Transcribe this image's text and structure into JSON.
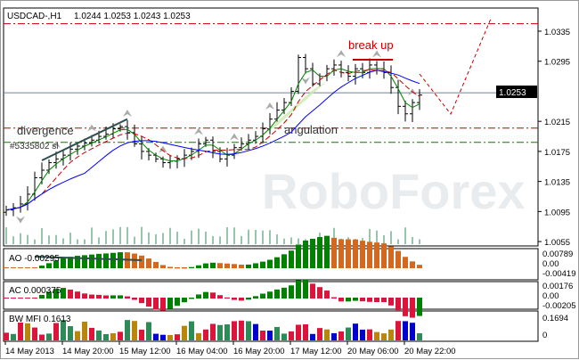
{
  "header": {
    "symbol": "USDCAD-,H1",
    "ohlc": "1.0244 1.0253 1.0243 1.0253"
  },
  "chart_data": {
    "type": "ohlc",
    "closes": [
      1.0097,
      1.01,
      1.0105,
      1.0118,
      1.014,
      1.015,
      1.016,
      1.0165,
      1.017,
      1.0178,
      1.0182,
      1.0186,
      1.019,
      1.0195,
      1.0198,
      1.0205,
      1.0208,
      1.02,
      1.0185,
      1.0175,
      1.017,
      1.0165,
      1.016,
      1.0162,
      1.0165,
      1.017,
      1.0175,
      1.0185,
      1.019,
      1.0175,
      1.0165,
      1.017,
      1.018,
      1.0185,
      1.019,
      1.0195,
      1.0205,
      1.0218,
      1.023,
      1.024,
      1.0255,
      1.03,
      1.0285,
      1.0265,
      1.0275,
      1.0285,
      1.029,
      1.028,
      1.0275,
      1.0285,
      1.028,
      1.029,
      1.0285,
      1.028,
      1.026,
      1.0235,
      1.0225,
      1.024,
      1.025
    ],
    "ylim": [
      1.005,
      1.036
    ],
    "y_ticks": [
      "1.0335",
      "1.0295",
      "1.0215",
      "1.0175",
      "1.0135",
      "1.0095",
      "1.0055"
    ],
    "current_price": "1.0253",
    "x_ticks": [
      "14 May 2013",
      "14 May 20:00",
      "15 May 12:00",
      "16 May 04:00",
      "16 May 20:00",
      "17 May 12:00",
      "20 May 06:00",
      "20 May 22:00"
    ],
    "levels": [
      {
        "price": 1.0345,
        "color": "#c00000"
      },
      {
        "price": 1.0206,
        "color": "#c00000"
      },
      {
        "price": 1.0187,
        "color": "#008000"
      }
    ],
    "annotations": {
      "break_up": "break up",
      "angulation": "angulation",
      "divergence": "divergence",
      "hidden_label": "#5335802 sl"
    },
    "ma_colors": {
      "fast": "#008000",
      "mid": "#c00000",
      "slow": "#0000ff"
    },
    "ao": {
      "label": "AO -0.00295",
      "ticks": [
        "0.00789",
        "0.00",
        "-0.00419"
      ]
    },
    "ac": {
      "label": "AC 0.000375",
      "ticks": [
        "0.00176",
        "0.00",
        "-0.00205"
      ]
    },
    "mfi": {
      "label": "BW MFI 0.1613",
      "ticks": [
        "0.1694",
        "0"
      ]
    },
    "watermark": "RoboForex"
  }
}
